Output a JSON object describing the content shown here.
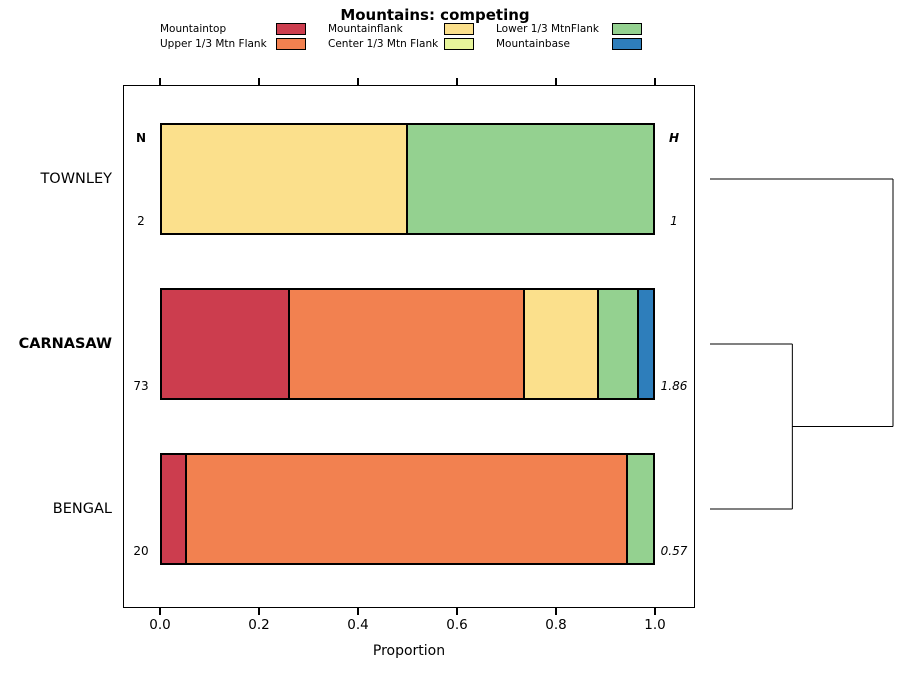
{
  "title": "Mountains: competing",
  "axis": {
    "xlabel": "Proportion",
    "ticks": [
      {
        "label": "0.0",
        "value": 0
      },
      {
        "label": "0.2",
        "value": 0.2
      },
      {
        "label": "0.4",
        "value": 0.4
      },
      {
        "label": "0.6",
        "value": 0.6
      },
      {
        "label": "0.8",
        "value": 0.8
      },
      {
        "label": "1.0",
        "value": 1.0
      }
    ]
  },
  "legend": {
    "entries": [
      {
        "label": "Mountaintop",
        "color": "#CC3D4E"
      },
      {
        "label": "Upper 1/3 Mtn Flank",
        "color": "#F28150"
      },
      {
        "label": "Mountainflank",
        "color": "#FBE08C"
      },
      {
        "label": "Center 1/3 Mtn Flank",
        "color": "#E7F59B"
      },
      {
        "label": "Lower 1/3 MtnFlank",
        "color": "#94D190"
      },
      {
        "label": "Mountainbase",
        "color": "#2E7EBB"
      }
    ]
  },
  "chart_data": {
    "type": "bar",
    "stacked": true,
    "orientation": "horizontal",
    "title": "Mountains: competing",
    "xlabel": "Proportion",
    "xlim": [
      0,
      1
    ],
    "n_header": "N",
    "h_header": "H",
    "categories": [
      "TOWNLEY",
      "CARNASAW",
      "BENGAL"
    ],
    "rows": [
      {
        "name": "TOWNLEY",
        "emphasis": false,
        "N": "2",
        "H": "1",
        "segments": [
          {
            "label": "Mountainflank",
            "value": 0.5
          },
          {
            "label": "Lower 1/3 MtnFlank",
            "value": 0.5
          }
        ]
      },
      {
        "name": "CARNASAW",
        "emphasis": true,
        "N": "73",
        "H": "1.86",
        "segments": [
          {
            "label": "Mountaintop",
            "value": 0.26
          },
          {
            "label": "Upper 1/3 Mtn Flank",
            "value": 0.479
          },
          {
            "label": "Mountainflank",
            "value": 0.151
          },
          {
            "label": "Lower 1/3 MtnFlank",
            "value": 0.082
          },
          {
            "label": "Mountainbase",
            "value": 0.028
          }
        ]
      },
      {
        "name": "BENGAL",
        "emphasis": false,
        "N": "20",
        "H": "0.57",
        "segments": [
          {
            "label": "Mountaintop",
            "value": 0.05
          },
          {
            "label": "Upper 1/3 Mtn Flank",
            "value": 0.9
          },
          {
            "label": "Lower 1/3 MtnFlank",
            "value": 0.05
          }
        ]
      }
    ]
  },
  "dendrogram": {
    "leaves": [
      "TOWNLEY",
      "CARNASAW",
      "BENGAL"
    ],
    "joins": [
      {
        "a": "CARNASAW",
        "b": "BENGAL",
        "height": 0.45
      },
      {
        "a": "join0",
        "b": "TOWNLEY",
        "height": 1.0
      }
    ]
  }
}
